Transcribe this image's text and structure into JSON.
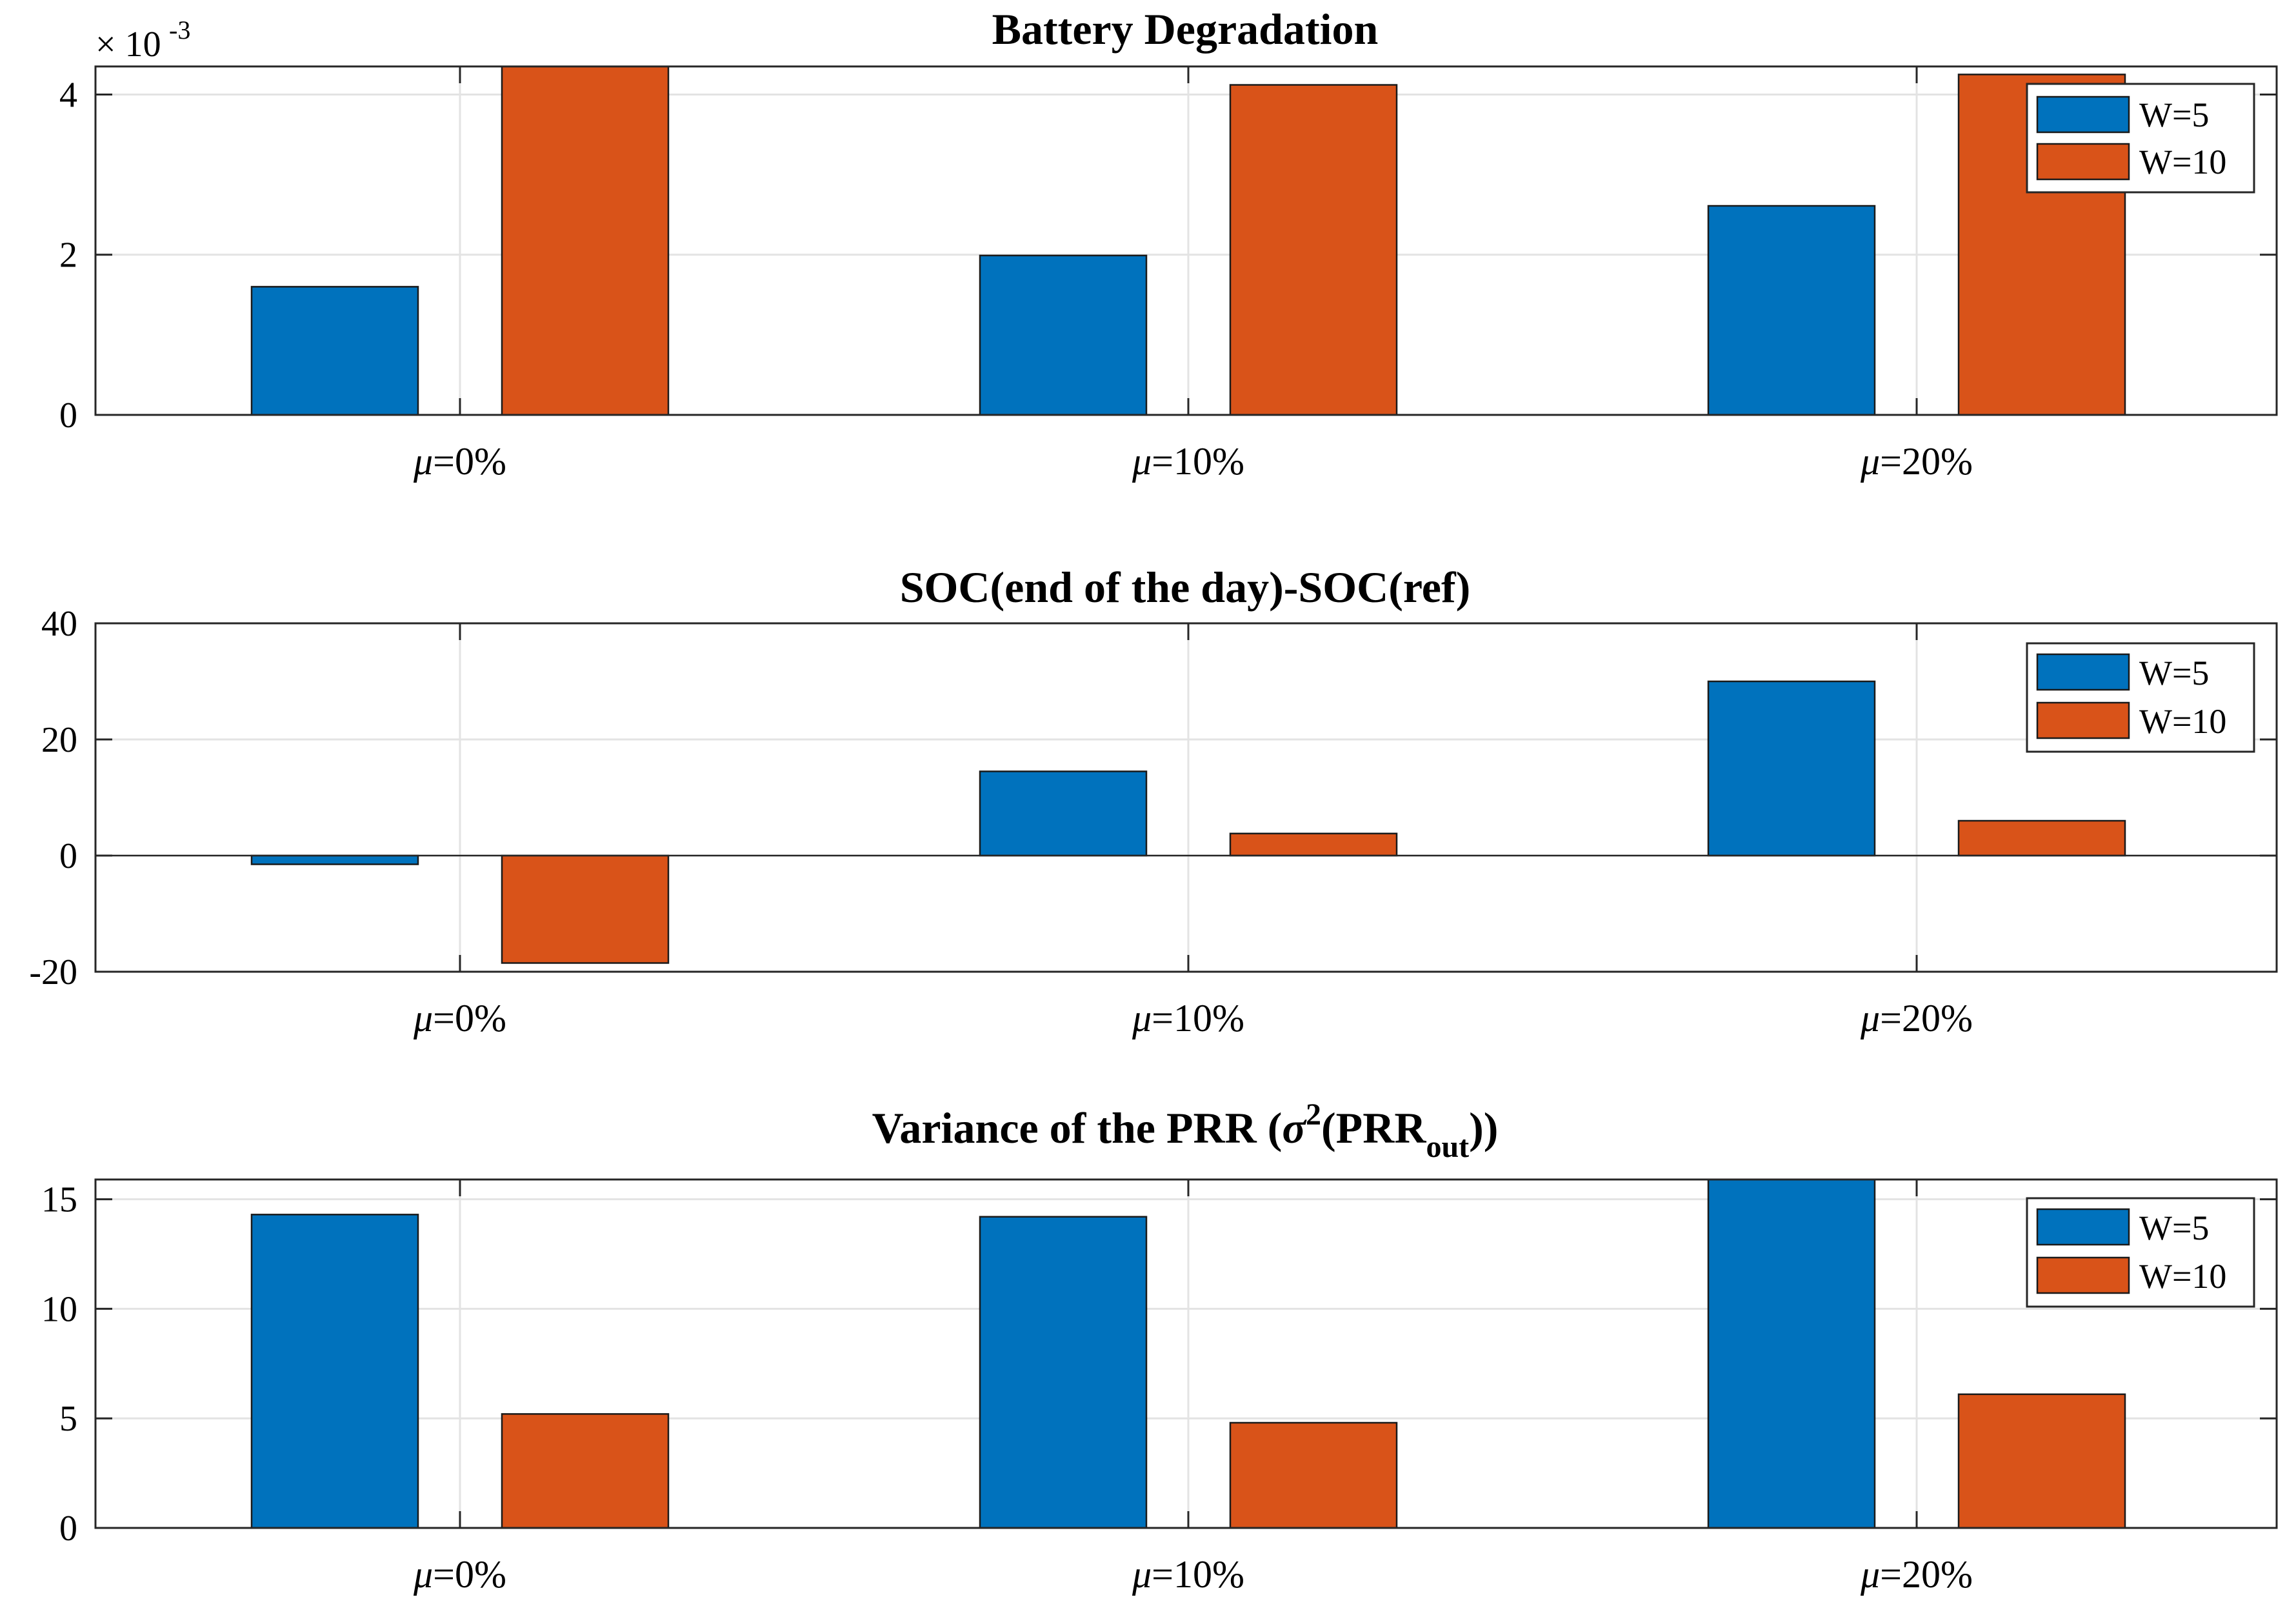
{
  "figure": {
    "colors": {
      "w5": "#0072BD",
      "w10": "#D95319"
    },
    "category_prefix": "μ",
    "categories_suffix": [
      "=0%",
      "=10%",
      "=20%"
    ]
  },
  "chart_data": [
    {
      "type": "bar",
      "title": "Battery Degradation",
      "categories": [
        "μ=0%",
        "μ=10%",
        "μ=20%"
      ],
      "series": [
        {
          "name": "W=5",
          "values": [
            0.0016,
            0.00199,
            0.00261
          ]
        },
        {
          "name": "W=10",
          "values": [
            0.00436,
            0.00412,
            0.00425
          ]
        }
      ],
      "ylim": [
        0,
        0.00435
      ],
      "yticks": [
        0,
        0.002,
        0.004
      ],
      "ytick_labels": [
        "0",
        "2",
        "4"
      ],
      "exponent_label": {
        "base": "× 10",
        "power": "-3"
      },
      "grid": true,
      "legend": "top-right",
      "xlabel": "",
      "ylabel": ""
    },
    {
      "type": "bar",
      "title": "SOC(end of the day)-SOC(ref)",
      "categories": [
        "μ=0%",
        "μ=10%",
        "μ=20%"
      ],
      "series": [
        {
          "name": "W=5",
          "values": [
            -1.5,
            14.5,
            30
          ]
        },
        {
          "name": "W=10",
          "values": [
            -18.5,
            3.8,
            6
          ]
        }
      ],
      "ylim": [
        -20,
        40
      ],
      "yticks": [
        -20,
        0,
        20,
        40
      ],
      "ytick_labels": [
        "-20",
        "0",
        "20",
        "40"
      ],
      "grid": true,
      "legend": "top-right",
      "xlabel": "",
      "ylabel": ""
    },
    {
      "type": "bar",
      "title": "Variance of the PRR (σ2(PRRout))",
      "title_parts": {
        "main": "Variance of the PRR (",
        "sigma": "σ",
        "sup": "2",
        "paren": "(PRR",
        "sub": "out",
        "close": "))"
      },
      "categories": [
        "μ=0%",
        "μ=10%",
        "μ=20%"
      ],
      "series": [
        {
          "name": "W=5",
          "values": [
            14.3,
            14.2,
            16
          ]
        },
        {
          "name": "W=10",
          "values": [
            5.2,
            4.8,
            6.1
          ]
        }
      ],
      "ylim": [
        0,
        15.9
      ],
      "yticks": [
        0,
        5,
        10,
        15
      ],
      "ytick_labels": [
        "0",
        "5",
        "10",
        "15"
      ],
      "grid": true,
      "legend": "top-right",
      "xlabel": "",
      "ylabel": ""
    }
  ]
}
